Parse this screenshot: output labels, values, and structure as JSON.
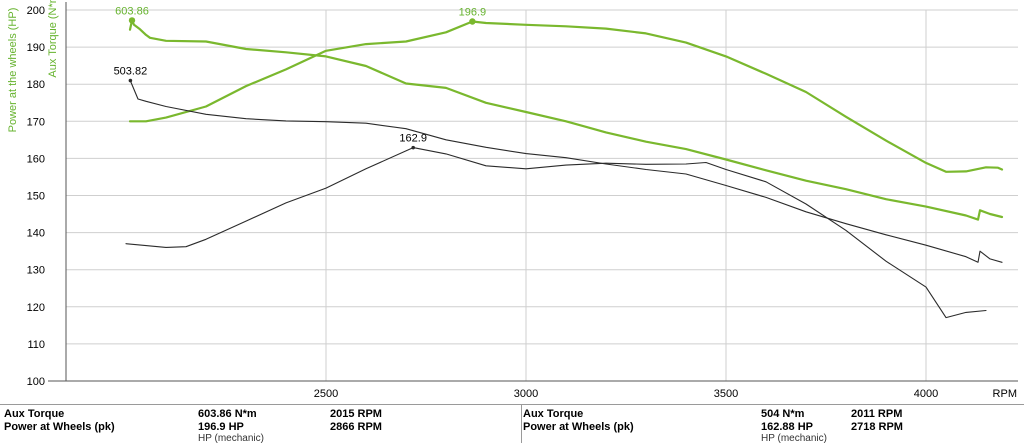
{
  "chart_data": {
    "type": "line",
    "xlabel": "RPM",
    "ylabel_left": "Power at the wheels (HP)",
    "ylabel_right": "Aux Torque (N*m)",
    "xlim": [
      1850,
      4230
    ],
    "x_ticks": [
      2500,
      3000,
      3500,
      4000
    ],
    "ylim": [
      100,
      200
    ],
    "y_ticks": [
      100,
      110,
      120,
      130,
      140,
      150,
      160,
      170,
      180,
      190,
      200
    ],
    "grid": true,
    "colors": {
      "run1": "#7ab82e",
      "run2": "#2b2b2b",
      "axis_label": "#66b32e"
    },
    "series": [
      {
        "name": "Aux Torque",
        "run": 1,
        "x": [
          2010,
          2015,
          2020,
          2035,
          2050,
          2060,
          2100,
          2200,
          2300,
          2400,
          2500,
          2600,
          2700,
          2800,
          2900,
          3000,
          3100,
          3200,
          3300,
          3400,
          3500,
          3600,
          3700,
          3800,
          3900,
          4000,
          4100,
          4130,
          4135,
          4160,
          4190
        ],
        "y": [
          194.7,
          197.2,
          196.0,
          194.8,
          193.3,
          192.5,
          191.7,
          191.5,
          189.5,
          188.6,
          187.5,
          184.9,
          180.2,
          179.0,
          175.0,
          172.5,
          170.0,
          167.0,
          164.5,
          162.5,
          159.7,
          156.8,
          154.0,
          151.7,
          149.0,
          147.0,
          144.6,
          143.5,
          146.0,
          145.0,
          144.2
        ]
      },
      {
        "name": "Power at Wheels",
        "run": 1,
        "x": [
          2010,
          2050,
          2100,
          2200,
          2300,
          2400,
          2500,
          2600,
          2700,
          2800,
          2866,
          2900,
          3000,
          3100,
          3200,
          3300,
          3400,
          3500,
          3600,
          3700,
          3800,
          3900,
          4000,
          4050,
          4100,
          4150,
          4180,
          4190
        ],
        "y": [
          170.0,
          170.0,
          171.0,
          174.0,
          179.5,
          184.0,
          189.0,
          190.8,
          191.5,
          194.0,
          196.9,
          196.5,
          196.0,
          195.6,
          195.0,
          193.7,
          191.2,
          187.5,
          182.8,
          177.9,
          171.2,
          164.8,
          158.8,
          156.4,
          156.5,
          157.6,
          157.5,
          157.0
        ]
      },
      {
        "name": "Aux Torque",
        "run": 2,
        "x": [
          2010,
          2011,
          2030,
          2050,
          2100,
          2200,
          2300,
          2400,
          2500,
          2600,
          2700,
          2800,
          2900,
          3000,
          3100,
          3200,
          3300,
          3400,
          3500,
          3600,
          3700,
          3800,
          3900,
          4000,
          4100,
          4130,
          4135,
          4160,
          4190
        ],
        "y": [
          181.0,
          180.9,
          176.0,
          175.4,
          174.0,
          171.9,
          170.7,
          170.1,
          169.9,
          169.5,
          168.0,
          165.0,
          163.0,
          161.3,
          160.2,
          158.5,
          157.0,
          155.8,
          152.7,
          149.5,
          145.6,
          142.4,
          139.4,
          136.6,
          133.5,
          132.0,
          135.0,
          132.9,
          132.0
        ]
      },
      {
        "name": "Power at Wheels",
        "run": 2,
        "x": [
          2000,
          2050,
          2100,
          2150,
          2200,
          2300,
          2400,
          2500,
          2600,
          2718,
          2800,
          2900,
          3000,
          3100,
          3200,
          3300,
          3400,
          3450,
          3500,
          3600,
          3700,
          3800,
          3900,
          4000,
          4050,
          4100,
          4150
        ],
        "y": [
          137.0,
          136.5,
          136.0,
          136.2,
          138.2,
          143.1,
          148.0,
          152.0,
          157.2,
          162.9,
          161.2,
          158.0,
          157.2,
          158.2,
          158.7,
          158.4,
          158.5,
          158.9,
          157.0,
          153.7,
          147.7,
          140.6,
          132.3,
          125.3,
          117.1,
          118.5,
          119.0
        ]
      }
    ],
    "annotations": [
      {
        "text": "603.86",
        "x": 2015,
        "y": 197.2
      },
      {
        "text": "196.9",
        "x": 2866,
        "y": 196.9
      },
      {
        "text": "503.82",
        "x": 2011,
        "y": 181.0
      },
      {
        "text": "162.9",
        "x": 2718,
        "y": 162.9
      }
    ]
  },
  "legend": {
    "left": [
      {
        "label": "Aux Torque",
        "value": "603.86 N*m",
        "rpm": "2015 RPM"
      },
      {
        "label": "Power at Wheels (pk)",
        "value": "196.9 HP",
        "rpm": "2866 RPM",
        "sub": "HP (mechanic)"
      }
    ],
    "right": [
      {
        "label": "Aux Torque",
        "value": "504 N*m",
        "rpm": "2011 RPM"
      },
      {
        "label": "Power at Wheels (pk)",
        "value": "162.88 HP",
        "rpm": "2718 RPM",
        "sub": "HP (mechanic)"
      }
    ]
  }
}
